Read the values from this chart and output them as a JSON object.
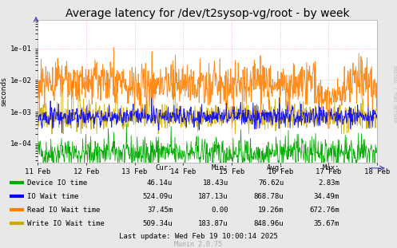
{
  "title": "Average latency for /dev/t2sysop-vg/root - by week",
  "ylabel": "seconds",
  "background_color": "#e8e8e8",
  "plot_background": "#ffffff",
  "grid_color": "#ff9999",
  "x_tick_labels": [
    "11 Feb",
    "12 Feb",
    "13 Feb",
    "14 Feb",
    "15 Feb",
    "16 Feb",
    "17 Feb",
    "18 Feb"
  ],
  "y_ticks": [
    0.0001,
    0.001,
    0.01,
    0.1
  ],
  "y_tick_labels": [
    "1e-04",
    "1e-03",
    "1e-02",
    "1e-01"
  ],
  "ylim": [
    2.5e-05,
    0.8
  ],
  "legend_items": [
    {
      "label": "Device IO time",
      "color": "#00aa00"
    },
    {
      "label": "IO Wait time",
      "color": "#0000ff"
    },
    {
      "label": "Read IO Wait time",
      "color": "#ff7f00"
    },
    {
      "label": "Write IO Wait time",
      "color": "#ccaa00"
    }
  ],
  "legend_data": {
    "headers": [
      "Cur:",
      "Min:",
      "Avg:",
      "Max:"
    ],
    "rows": [
      [
        "46.14u",
        "18.43u",
        "76.62u",
        "2.83m"
      ],
      [
        "524.09u",
        "187.13u",
        "868.78u",
        "34.49m"
      ],
      [
        "37.45m",
        "0.00",
        "19.26m",
        "672.76m"
      ],
      [
        "509.34u",
        "183.87u",
        "848.96u",
        "35.67m"
      ]
    ]
  },
  "last_update": "Last update: Wed Feb 19 10:00:14 2025",
  "munin_version": "Munin 2.0.75",
  "rrdtool_label": "RRDTOOL / TOBI OETIKER",
  "title_fontsize": 10,
  "axis_fontsize": 6.5,
  "legend_fontsize": 6.5,
  "n_points": 800,
  "seed": 42
}
